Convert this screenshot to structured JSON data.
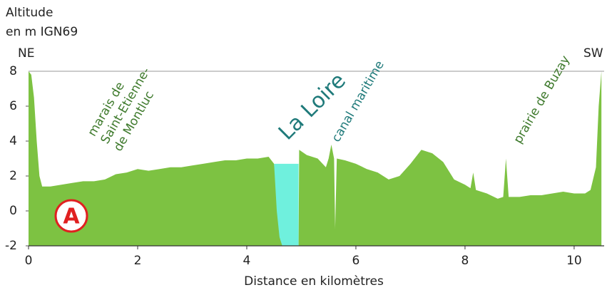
{
  "chart_data": {
    "type": "area",
    "y_label": [
      "Altitude",
      "en m IGN69"
    ],
    "x_label": "Distance en kilomètres",
    "left_end_label": "NE",
    "right_end_label": "SW",
    "annotations": [
      [
        "marais de",
        "Saint-Etienne-",
        "de Montluc"
      ],
      "La Loire",
      "canal maritime",
      "prairie de Buzay"
    ],
    "badge": "A",
    "x": [
      0,
      0.05,
      0.1,
      0.15,
      0.2,
      0.25,
      0.4,
      0.6,
      0.8,
      1.0,
      1.2,
      1.4,
      1.6,
      1.8,
      2.0,
      2.2,
      2.4,
      2.6,
      2.8,
      3.0,
      3.2,
      3.4,
      3.6,
      3.8,
      4.0,
      4.2,
      4.4,
      4.5,
      4.55,
      4.6,
      4.65,
      4.95,
      4.96,
      5.1,
      5.3,
      5.45,
      5.5,
      5.55,
      5.6,
      5.62,
      5.65,
      5.8,
      6.0,
      6.2,
      6.4,
      6.6,
      6.8,
      7.0,
      7.2,
      7.4,
      7.6,
      7.8,
      8.0,
      8.1,
      8.15,
      8.2,
      8.4,
      8.6,
      8.7,
      8.75,
      8.8,
      9.0,
      9.2,
      9.4,
      9.6,
      9.8,
      10.0,
      10.2,
      10.3,
      10.4,
      10.45,
      10.5
    ],
    "series": [
      {
        "color": "#7dc242",
        "values": [
          8,
          7.8,
          6.5,
          4,
          2,
          1.4,
          1.4,
          1.5,
          1.6,
          1.7,
          1.7,
          1.8,
          2.1,
          2.2,
          2.4,
          2.3,
          2.4,
          2.5,
          2.5,
          2.6,
          2.7,
          2.8,
          2.9,
          2.9,
          3.0,
          3.0,
          3.1,
          2.7,
          0,
          -1.5,
          -2,
          -2,
          3.5,
          3.2,
          3.0,
          2.5,
          3.0,
          3.8,
          3.0,
          -1,
          3.0,
          2.9,
          2.7,
          2.4,
          2.2,
          1.8,
          2.0,
          2.7,
          3.5,
          3.3,
          2.8,
          1.8,
          1.5,
          1.3,
          2.2,
          1.2,
          1.0,
          0.7,
          0.8,
          3.0,
          0.8,
          0.8,
          0.9,
          0.9,
          1.0,
          1.1,
          1.0,
          1.0,
          1.2,
          2.5,
          6,
          8
        ]
      },
      {
        "color": "#6ff0dd",
        "values": [
          null,
          null,
          null,
          null,
          null,
          null,
          null,
          null,
          null,
          null,
          null,
          null,
          null,
          null,
          null,
          null,
          null,
          null,
          null,
          null,
          null,
          null,
          null,
          null,
          null,
          null,
          null,
          2.7,
          2.7,
          2.7,
          2.7,
          2.7,
          null,
          null,
          null,
          null,
          null,
          null,
          null,
          null,
          null,
          null,
          null,
          null,
          null,
          null,
          null,
          null,
          null,
          null,
          null,
          null,
          null,
          null,
          null,
          null,
          null,
          null,
          null,
          null,
          null,
          null,
          null,
          null,
          null,
          null,
          null,
          null,
          null,
          null,
          null,
          null
        ]
      }
    ],
    "xlim": [
      0,
      10.55
    ],
    "ylim": [
      -2,
      8
    ],
    "xticks": [
      0,
      2,
      4,
      6,
      8,
      10
    ],
    "yticks": [
      -2,
      0,
      2,
      4,
      6,
      8
    ]
  }
}
